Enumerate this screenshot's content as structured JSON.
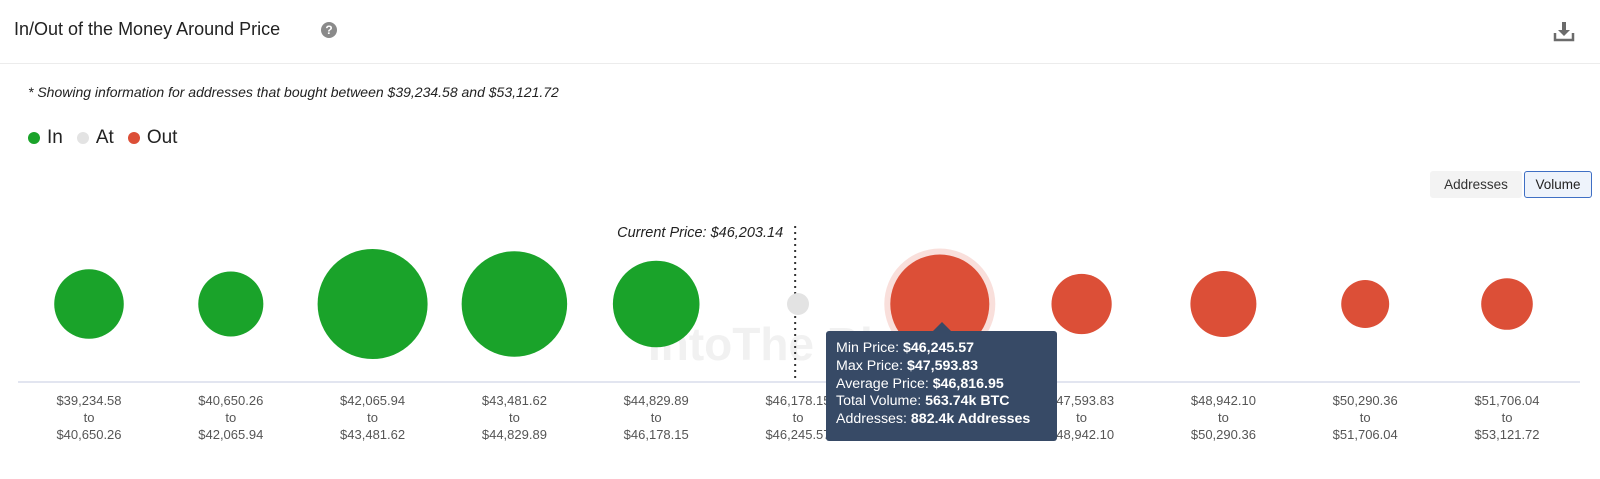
{
  "header": {
    "title": "In/Out of the Money Around Price",
    "help_icon": "?"
  },
  "note": "* Showing information for addresses that bought between $39,234.58 and $53,121.72",
  "legend": [
    {
      "label": "In",
      "color": "#1aa32a"
    },
    {
      "label": "At",
      "color": "#e3e3e3"
    },
    {
      "label": "Out",
      "color": "#dc4f37"
    }
  ],
  "toggles": {
    "addresses": "Addresses",
    "volume": "Volume",
    "active": "Volume"
  },
  "tooltip": {
    "min_label": "Min Price: ",
    "min_value": "$46,245.57",
    "max_label": "Max Price: ",
    "max_value": "$47,593.83",
    "avg_label": "Average Price: ",
    "avg_value": "$46,816.95",
    "vol_label": "Total Volume: ",
    "vol_value": "563.74k BTC",
    "addr_label": "Addresses: ",
    "addr_value": "882.4k Addresses"
  },
  "chart_data": {
    "type": "scatter",
    "metric": "Volume",
    "current_price_label": "Current Price: $46,203.14",
    "current_price_after_bucket": 5,
    "colors": {
      "In": "#1aa32a",
      "At": "#e3e3e3",
      "Out": "#dc4f37"
    },
    "buckets": [
      {
        "from": "$39,234.58",
        "to": "$40,650.26",
        "status": "In",
        "relative_size": 0.4
      },
      {
        "from": "$40,650.26",
        "to": "$42,065.94",
        "status": "In",
        "relative_size": 0.35
      },
      {
        "from": "$42,065.94",
        "to": "$43,481.62",
        "status": "In",
        "relative_size": 1.0
      },
      {
        "from": "$43,481.62",
        "to": "$44,829.89",
        "status": "In",
        "relative_size": 0.92
      },
      {
        "from": "$44,829.89",
        "to": "$46,178.15",
        "status": "In",
        "relative_size": 0.62
      },
      {
        "from": "$46,178.15",
        "to": "$46,245.57",
        "status": "At",
        "relative_size": 0.04
      },
      {
        "from": "$46,245.57",
        "to": "$47,593.83",
        "status": "Out",
        "relative_size": 0.81,
        "highlighted": true
      },
      {
        "from": "$47,593.83",
        "to": "$48,942.10",
        "status": "Out",
        "relative_size": 0.3
      },
      {
        "from": "$48,942.10",
        "to": "$50,290.36",
        "status": "Out",
        "relative_size": 0.36
      },
      {
        "from": "$50,290.36",
        "to": "$51,706.04",
        "status": "Out",
        "relative_size": 0.19
      },
      {
        "from": "$51,706.04",
        "to": "$53,121.72",
        "status": "Out",
        "relative_size": 0.22
      }
    ]
  }
}
